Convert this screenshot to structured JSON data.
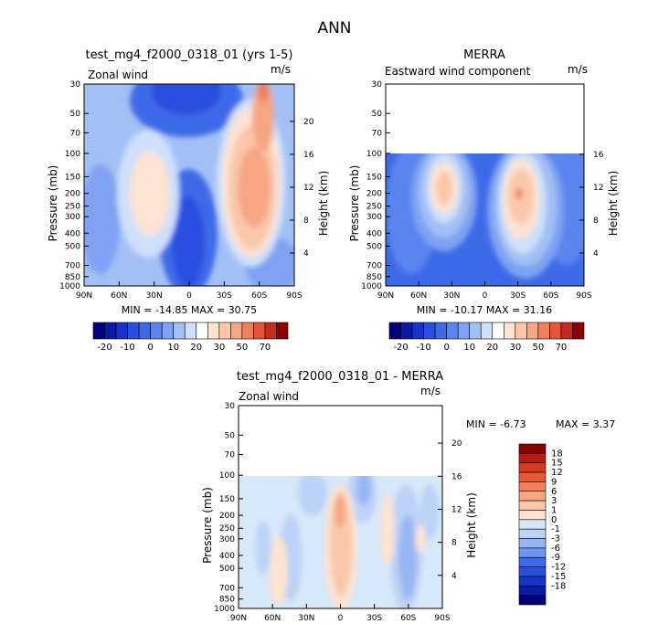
{
  "page_title": "ANN",
  "colors": {
    "panel_levels": [
      "#00007f",
      "#0a1aa8",
      "#1834c8",
      "#2a4fe0",
      "#3d6ae8",
      "#5a85ee",
      "#7fa3f2",
      "#a3c0f5",
      "#cfe0fa",
      "#ffffff",
      "#fde3d2",
      "#fbc7aa",
      "#f7a684",
      "#f0805e",
      "#e3563a",
      "#c72a1c",
      "#8a0000"
    ],
    "diff_levels": [
      "#00007f",
      "#0a1aa8",
      "#1834c8",
      "#2a4fe0",
      "#3d6ae8",
      "#6f95f0",
      "#98b6f3",
      "#bcd2f7",
      "#d6e8f9",
      "#fde3d2",
      "#fbc7aa",
      "#f7a684",
      "#f0805e",
      "#e85a36",
      "#d83a20",
      "#b81b0f",
      "#8a0000"
    ]
  },
  "chart_data": [
    {
      "type": "heatmap",
      "title": "test_mg4_f2000_0318_01 (yrs 1-5)",
      "subtitle_left": "Zonal wind",
      "subtitle_right": "m/s",
      "ylabel": "Pressure (mb)",
      "ylabel_right": "Height (km)",
      "x_ticks": [
        "90N",
        "60N",
        "30N",
        "0",
        "30S",
        "60S",
        "90S"
      ],
      "y_ticks": [
        30,
        50,
        70,
        100,
        150,
        200,
        250,
        300,
        400,
        500,
        700,
        850,
        1000
      ],
      "height_ticks": [
        20,
        16,
        12,
        8,
        4
      ],
      "stats": "MIN = -14.85   MAX = 30.75",
      "colorbar_labels": [
        "-20",
        "-10",
        "0",
        "10",
        "20",
        "30",
        "50",
        "70"
      ],
      "features": [
        {
          "lat": 35,
          "p": 220,
          "value": 30
        },
        {
          "lat": -45,
          "p": 180,
          "value": 30
        },
        {
          "lat": -58,
          "p": 40,
          "value": 30
        },
        {
          "lat": 0,
          "p": 60,
          "value": -15
        }
      ]
    },
    {
      "type": "heatmap",
      "title": "MERRA",
      "subtitle_left": "Eastward wind component",
      "subtitle_right": "m/s",
      "ylabel": "Pressure (mb)",
      "ylabel_right": "Height (km)",
      "x_ticks": [
        "90N",
        "60N",
        "30N",
        "0",
        "30S",
        "60S",
        "90S"
      ],
      "y_ticks": [
        30,
        50,
        70,
        100,
        150,
        200,
        250,
        300,
        400,
        500,
        700,
        850,
        1000
      ],
      "height_ticks": [
        16,
        12,
        8,
        4
      ],
      "stats": "MIN = -10.17   MAX = 31.16",
      "colorbar_labels": [
        "-20",
        "-10",
        "0",
        "10",
        "20",
        "30",
        "50",
        "70"
      ],
      "data_top_pressure": 100,
      "features": [
        {
          "lat": 38,
          "p": 200,
          "value": 30
        },
        {
          "lat": -33,
          "p": 200,
          "value": 31
        }
      ]
    },
    {
      "type": "heatmap",
      "title": "test_mg4_f2000_0318_01 - MERRA",
      "subtitle_left": "Zonal wind",
      "subtitle_right": "m/s",
      "ylabel": "Pressure (mb)",
      "ylabel_right": "Height (km)",
      "x_ticks": [
        "90N",
        "60N",
        "30N",
        "0",
        "30S",
        "60S",
        "90S"
      ],
      "y_ticks": [
        30,
        50,
        70,
        100,
        150,
        200,
        250,
        300,
        400,
        500,
        700,
        850,
        1000
      ],
      "height_ticks": [
        20,
        16,
        12,
        8,
        4
      ],
      "stats_min": "MIN =   -6.73",
      "stats_max": "MAX =    3.37",
      "colorbar_labels": [
        "18",
        "15",
        "12",
        "9",
        "6",
        "3",
        "1",
        "0",
        "-1",
        "-3",
        "-6",
        "-9",
        "-12",
        "-15",
        "-18"
      ],
      "data_top_pressure": 100
    }
  ]
}
